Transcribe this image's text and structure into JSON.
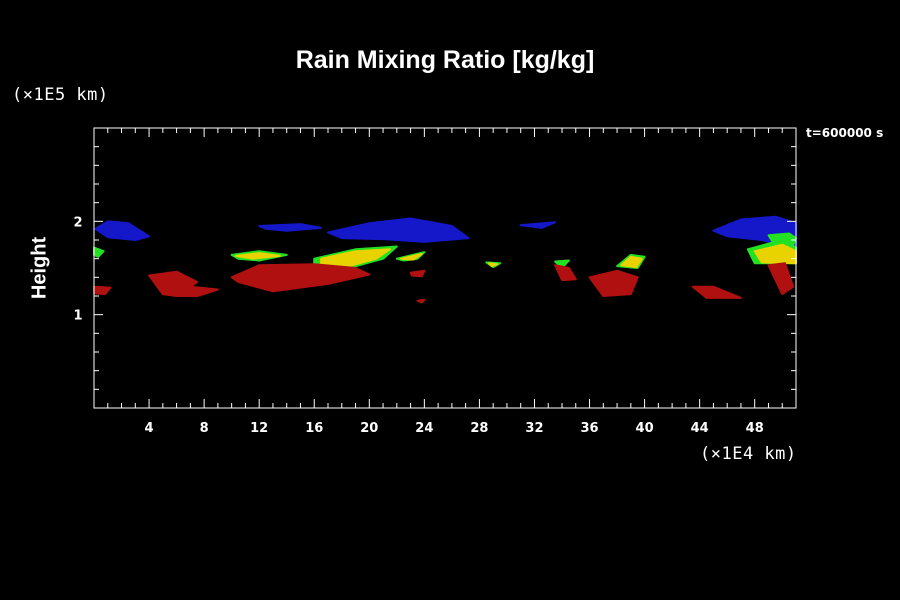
{
  "chart_data": {
    "type": "heatmap",
    "title": "Rain Mixing Ratio [kg/kg]",
    "ylabel": "Height",
    "y_unit": "(×1E5 km)",
    "x_unit": "(×1E4 km)",
    "time_label": "t=600000 s",
    "xlim": [
      0,
      51
    ],
    "ylim": [
      0,
      3
    ],
    "x_ticks": [
      4,
      8,
      12,
      16,
      20,
      24,
      28,
      32,
      36,
      40,
      44,
      48
    ],
    "x_tick_labels": [
      "4",
      "8",
      "12",
      "16",
      "20",
      "24",
      "28",
      "32",
      "36",
      "40",
      "44",
      "48"
    ],
    "y_ticks": [
      1,
      2
    ],
    "y_tick_labels": [
      "1",
      "2"
    ],
    "colors": {
      "background": "#000000",
      "axis": "#ffffff",
      "blue": "#1418c8",
      "green": "#22e022",
      "yellow": "#e8d200",
      "red": "#b01010"
    },
    "regions": [
      {
        "level": "blue",
        "points": [
          [
            0.1,
            1.92
          ],
          [
            1,
            2.0
          ],
          [
            2.5,
            1.98
          ],
          [
            4,
            1.84
          ],
          [
            3,
            1.8
          ],
          [
            1,
            1.83
          ]
        ]
      },
      {
        "level": "blue",
        "points": [
          [
            12,
            1.95
          ],
          [
            15,
            1.97
          ],
          [
            16.5,
            1.93
          ],
          [
            14,
            1.9
          ],
          [
            12.5,
            1.92
          ]
        ]
      },
      {
        "level": "blue",
        "points": [
          [
            17,
            1.88
          ],
          [
            20,
            1.98
          ],
          [
            23,
            2.03
          ],
          [
            26,
            1.95
          ],
          [
            27.2,
            1.82
          ],
          [
            24,
            1.78
          ],
          [
            21,
            1.81
          ],
          [
            18,
            1.82
          ]
        ]
      },
      {
        "level": "blue",
        "points": [
          [
            31,
            1.96
          ],
          [
            33.5,
            1.99
          ],
          [
            32.5,
            1.93
          ]
        ]
      },
      {
        "level": "blue",
        "points": [
          [
            45,
            1.9
          ],
          [
            47,
            2.02
          ],
          [
            49.5,
            2.05
          ],
          [
            51,
            1.98
          ],
          [
            51,
            1.73
          ],
          [
            49.5,
            1.76
          ],
          [
            48.5,
            1.8
          ],
          [
            46,
            1.84
          ]
        ]
      },
      {
        "level": "green",
        "points": [
          [
            0,
            1.72
          ],
          [
            0.7,
            1.68
          ],
          [
            0.3,
            1.62
          ],
          [
            0,
            1.64
          ]
        ]
      },
      {
        "level": "green",
        "points": [
          [
            49,
            1.85
          ],
          [
            50.5,
            1.87
          ],
          [
            51,
            1.82
          ],
          [
            50.8,
            1.75
          ],
          [
            49.3,
            1.78
          ]
        ]
      },
      {
        "level": "green",
        "points": [
          [
            10,
            1.64
          ],
          [
            12,
            1.68
          ],
          [
            14,
            1.64
          ],
          [
            12,
            1.58
          ],
          [
            10.5,
            1.6
          ]
        ]
      },
      {
        "level": "yellow",
        "points": [
          [
            10.3,
            1.63
          ],
          [
            12,
            1.66
          ],
          [
            13.5,
            1.63
          ],
          [
            11.5,
            1.6
          ]
        ]
      },
      {
        "level": "green",
        "points": [
          [
            16,
            1.6
          ],
          [
            19,
            1.7
          ],
          [
            22,
            1.73
          ],
          [
            21,
            1.6
          ],
          [
            18,
            1.48
          ],
          [
            16,
            1.5
          ]
        ]
      },
      {
        "level": "yellow",
        "points": [
          [
            16.5,
            1.6
          ],
          [
            19,
            1.68
          ],
          [
            21.5,
            1.7
          ],
          [
            20.5,
            1.6
          ],
          [
            18,
            1.5
          ],
          [
            16.5,
            1.52
          ]
        ]
      },
      {
        "level": "green",
        "points": [
          [
            22,
            1.6
          ],
          [
            24,
            1.67
          ],
          [
            23.5,
            1.6
          ],
          [
            22.5,
            1.58
          ]
        ]
      },
      {
        "level": "yellow",
        "points": [
          [
            22.3,
            1.6
          ],
          [
            23.8,
            1.65
          ],
          [
            23.2,
            1.59
          ]
        ]
      },
      {
        "level": "green",
        "points": [
          [
            28.5,
            1.56
          ],
          [
            29.5,
            1.55
          ],
          [
            29,
            1.51
          ]
        ]
      },
      {
        "level": "yellow",
        "points": [
          [
            28.7,
            1.55
          ],
          [
            29.3,
            1.54
          ],
          [
            28.9,
            1.52
          ]
        ]
      },
      {
        "level": "green",
        "points": [
          [
            33.5,
            1.57
          ],
          [
            34.5,
            1.58
          ],
          [
            34,
            1.5
          ]
        ]
      },
      {
        "level": "green",
        "points": [
          [
            38,
            1.52
          ],
          [
            39,
            1.64
          ],
          [
            40,
            1.62
          ],
          [
            39.5,
            1.5
          ]
        ]
      },
      {
        "level": "yellow",
        "points": [
          [
            38.3,
            1.53
          ],
          [
            39,
            1.62
          ],
          [
            39.8,
            1.6
          ],
          [
            39.4,
            1.51
          ]
        ]
      },
      {
        "level": "green",
        "points": [
          [
            47.5,
            1.7
          ],
          [
            50,
            1.8
          ],
          [
            51,
            1.72
          ],
          [
            51,
            1.55
          ],
          [
            48,
            1.55
          ]
        ]
      },
      {
        "level": "yellow",
        "points": [
          [
            48,
            1.68
          ],
          [
            50,
            1.75
          ],
          [
            51,
            1.68
          ],
          [
            51,
            1.55
          ],
          [
            48.5,
            1.56
          ]
        ]
      },
      {
        "level": "red",
        "points": [
          [
            0,
            1.3
          ],
          [
            1.2,
            1.29
          ],
          [
            0.8,
            1.22
          ],
          [
            0,
            1.23
          ]
        ]
      },
      {
        "level": "red",
        "points": [
          [
            4,
            1.42
          ],
          [
            6,
            1.46
          ],
          [
            7.5,
            1.35
          ],
          [
            6,
            1.2
          ],
          [
            5,
            1.22
          ]
        ]
      },
      {
        "level": "red",
        "points": [
          [
            5.5,
            1.25
          ],
          [
            7,
            1.3
          ],
          [
            9,
            1.27
          ],
          [
            7.5,
            1.2
          ],
          [
            6,
            1.2
          ]
        ]
      },
      {
        "level": "red",
        "points": [
          [
            10,
            1.4
          ],
          [
            12,
            1.53
          ],
          [
            16,
            1.54
          ],
          [
            19,
            1.5
          ],
          [
            20,
            1.43
          ],
          [
            17,
            1.33
          ],
          [
            13,
            1.25
          ],
          [
            10.5,
            1.35
          ]
        ]
      },
      {
        "level": "red",
        "points": [
          [
            23,
            1.45
          ],
          [
            24,
            1.47
          ],
          [
            23.8,
            1.41
          ],
          [
            23.1,
            1.42
          ]
        ]
      },
      {
        "level": "red",
        "points": [
          [
            23.5,
            1.15
          ],
          [
            24,
            1.16
          ],
          [
            23.8,
            1.13
          ]
        ]
      },
      {
        "level": "red",
        "points": [
          [
            33.5,
            1.53
          ],
          [
            34.5,
            1.5
          ],
          [
            35,
            1.38
          ],
          [
            34,
            1.37
          ]
        ]
      },
      {
        "level": "red",
        "points": [
          [
            36,
            1.4
          ],
          [
            38,
            1.47
          ],
          [
            39.5,
            1.4
          ],
          [
            39,
            1.22
          ],
          [
            37,
            1.2
          ],
          [
            36.5,
            1.3
          ]
        ]
      },
      {
        "level": "red",
        "points": [
          [
            43.5,
            1.3
          ],
          [
            45,
            1.3
          ],
          [
            47,
            1.18
          ],
          [
            44.5,
            1.18
          ]
        ]
      },
      {
        "level": "red",
        "points": [
          [
            49,
            1.53
          ],
          [
            50.2,
            1.55
          ],
          [
            50.8,
            1.3
          ],
          [
            50,
            1.22
          ]
        ]
      }
    ]
  }
}
